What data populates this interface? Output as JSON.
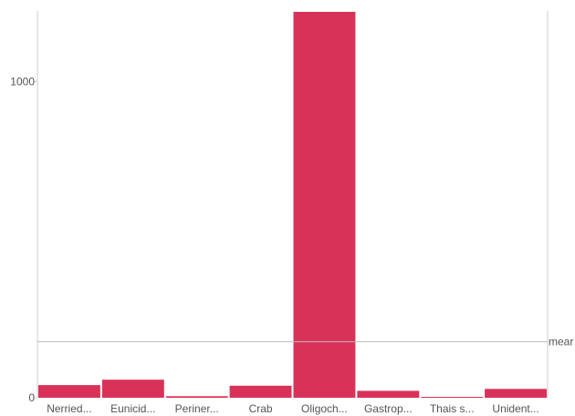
{
  "chart_data": {
    "type": "bar",
    "categories": [
      "Nerried...",
      "Eunicid...",
      "Periner...",
      "Crab",
      "Oligoch...",
      "Gastrop...",
      "Thais s...",
      "Unident..."
    ],
    "values": [
      40,
      57,
      5,
      38,
      1220,
      22,
      3,
      28
    ],
    "ylim": [
      0,
      1220
    ],
    "yticks": [
      0,
      1000
    ],
    "ytick_labels": [
      "0",
      "1000"
    ],
    "mean_value": 177,
    "mean_label": "mear",
    "bar_color": "#d93258",
    "grid": false
  }
}
